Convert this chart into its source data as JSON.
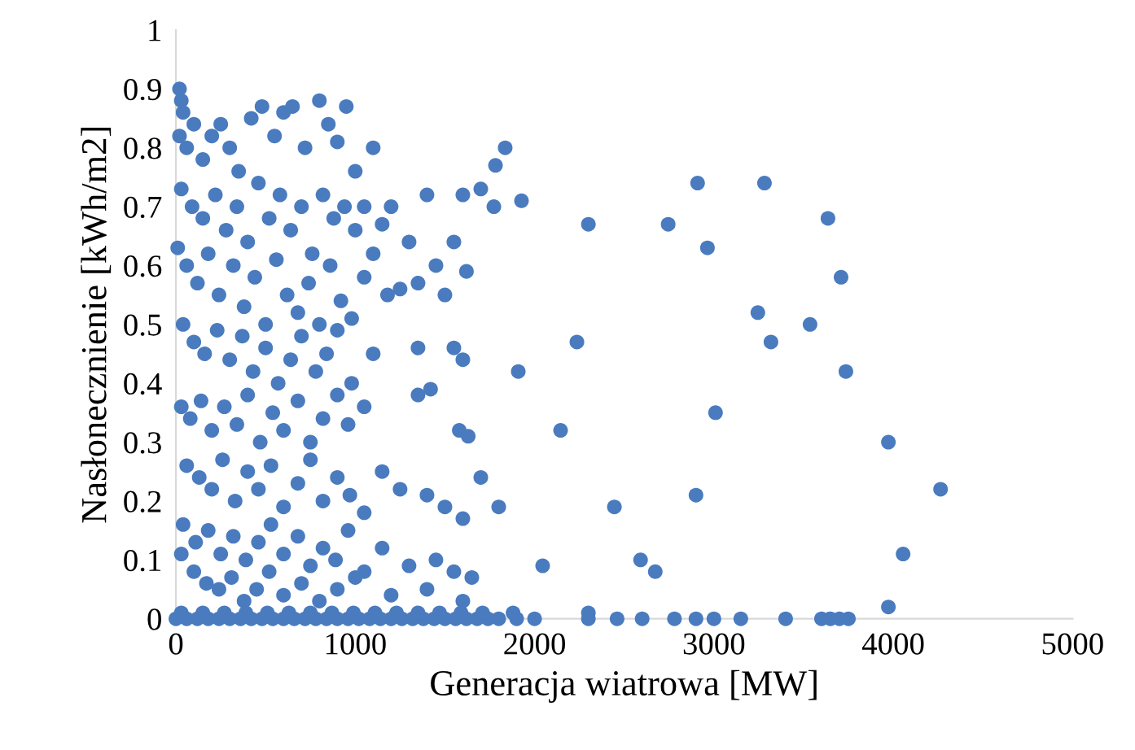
{
  "chart_data": {
    "type": "scatter",
    "xlabel": "Generacja wiatrowa [MW]",
    "ylabel": "Nasłonecznienie [kWh/m2]",
    "xlim": [
      0,
      5000
    ],
    "xticks": [
      0,
      1000,
      2000,
      3000,
      4000,
      5000
    ],
    "ylim": [
      0,
      1
    ],
    "yticks": [
      0,
      0.1,
      0.2,
      0.3,
      0.4,
      0.5,
      0.6,
      0.7,
      0.8,
      0.9,
      1
    ],
    "grid": false,
    "legend": false,
    "marker": "circle",
    "series": [
      {
        "color": "#4a7bbf",
        "x": [
          20,
          30,
          40,
          20,
          60,
          100,
          150,
          200,
          250,
          300,
          350,
          420,
          480,
          550,
          600,
          650,
          720,
          800,
          850,
          900,
          950,
          1000,
          1100,
          30,
          90,
          150,
          220,
          280,
          340,
          400,
          460,
          520,
          580,
          640,
          700,
          760,
          820,
          880,
          940,
          1000,
          1050,
          1150,
          1200,
          1300,
          1400,
          1550,
          1600,
          1700,
          1450,
          10,
          60,
          120,
          180,
          240,
          320,
          380,
          440,
          500,
          560,
          620,
          680,
          740,
          800,
          860,
          920,
          980,
          1050,
          1100,
          1180,
          1250,
          1350,
          1500,
          1620,
          40,
          100,
          160,
          230,
          300,
          370,
          430,
          500,
          570,
          640,
          700,
          780,
          840,
          900,
          980,
          1100,
          1350,
          1550,
          1600,
          1420,
          30,
          80,
          140,
          200,
          270,
          340,
          400,
          470,
          540,
          600,
          680,
          750,
          820,
          900,
          960,
          1050,
          1350,
          1580,
          1630,
          60,
          130,
          200,
          260,
          330,
          400,
          460,
          530,
          600,
          680,
          750,
          820,
          900,
          970,
          1050,
          1150,
          1250,
          1400,
          1500,
          1700,
          1600,
          1800,
          40,
          110,
          180,
          250,
          320,
          390,
          460,
          530,
          600,
          680,
          750,
          820,
          890,
          960,
          1050,
          1150,
          1300,
          1450,
          1550,
          1650,
          30,
          100,
          170,
          240,
          310,
          380,
          450,
          520,
          600,
          700,
          800,
          900,
          1000,
          1200,
          1400,
          1600,
          2300,
          2745,
          2909,
          3282,
          3636,
          2964,
          3709,
          3245,
          3318,
          3536,
          3736,
          3009,
          3973,
          4264,
          4055,
          2900,
          2445,
          2145,
          2236,
          1909,
          1927,
          1836,
          1782,
          1773,
          2045,
          2591,
          2673,
          3973,
          0,
          60,
          120,
          180,
          240,
          300,
          360,
          420,
          480,
          540,
          600,
          660,
          720,
          780,
          840,
          900,
          960,
          1020,
          1080,
          1140,
          1200,
          1260,
          1320,
          1380,
          1440,
          1500,
          1560,
          1620,
          1680,
          1740,
          1800,
          1900,
          2000,
          2300,
          2460,
          2600,
          2780,
          2900,
          3000,
          3150,
          3400,
          3600,
          3650,
          3700,
          3750,
          30,
          150,
          270,
          390,
          510,
          630,
          750,
          870,
          990,
          1110,
          1230,
          1350,
          1470,
          1590,
          1710,
          1880,
          2300
        ],
        "values": [
          0.9,
          0.88,
          0.86,
          0.82,
          0.8,
          0.84,
          0.78,
          0.82,
          0.84,
          0.8,
          0.76,
          0.85,
          0.87,
          0.82,
          0.86,
          0.87,
          0.8,
          0.88,
          0.84,
          0.81,
          0.87,
          0.76,
          0.8,
          0.73,
          0.7,
          0.68,
          0.72,
          0.66,
          0.7,
          0.64,
          0.74,
          0.68,
          0.72,
          0.66,
          0.7,
          0.62,
          0.72,
          0.68,
          0.7,
          0.66,
          0.7,
          0.67,
          0.7,
          0.64,
          0.72,
          0.64,
          0.72,
          0.73,
          0.6,
          0.63,
          0.6,
          0.57,
          0.62,
          0.55,
          0.6,
          0.53,
          0.58,
          0.5,
          0.61,
          0.55,
          0.52,
          0.57,
          0.5,
          0.6,
          0.54,
          0.51,
          0.58,
          0.62,
          0.55,
          0.56,
          0.57,
          0.55,
          0.59,
          0.5,
          0.47,
          0.45,
          0.49,
          0.44,
          0.48,
          0.42,
          0.46,
          0.4,
          0.44,
          0.48,
          0.42,
          0.45,
          0.49,
          0.4,
          0.45,
          0.46,
          0.46,
          0.44,
          0.39,
          0.36,
          0.34,
          0.37,
          0.32,
          0.36,
          0.33,
          0.38,
          0.3,
          0.35,
          0.32,
          0.37,
          0.3,
          0.34,
          0.38,
          0.33,
          0.36,
          0.38,
          0.32,
          0.31,
          0.26,
          0.24,
          0.22,
          0.27,
          0.2,
          0.25,
          0.22,
          0.26,
          0.19,
          0.23,
          0.27,
          0.2,
          0.24,
          0.21,
          0.18,
          0.25,
          0.22,
          0.21,
          0.19,
          0.24,
          0.17,
          0.19,
          0.16,
          0.13,
          0.15,
          0.11,
          0.14,
          0.1,
          0.13,
          0.16,
          0.11,
          0.14,
          0.09,
          0.12,
          0.1,
          0.15,
          0.08,
          0.12,
          0.09,
          0.1,
          0.08,
          0.07,
          0.11,
          0.08,
          0.06,
          0.05,
          0.07,
          0.03,
          0.05,
          0.08,
          0.04,
          0.06,
          0.03,
          0.05,
          0.07,
          0.04,
          0.05,
          0.03,
          0.67,
          0.67,
          0.74,
          0.74,
          0.68,
          0.63,
          0.58,
          0.52,
          0.47,
          0.5,
          0.42,
          0.35,
          0.3,
          0.22,
          0.11,
          0.21,
          0.19,
          0.32,
          0.47,
          0.42,
          0.71,
          0.8,
          0.77,
          0.7,
          0.09,
          0.1,
          0.08,
          0.02,
          0,
          0,
          0,
          0,
          0,
          0,
          0,
          0,
          0,
          0,
          0,
          0,
          0,
          0,
          0,
          0,
          0,
          0,
          0,
          0,
          0,
          0,
          0,
          0,
          0,
          0,
          0,
          0,
          0,
          0,
          0,
          0,
          0,
          0,
          0,
          0,
          0,
          0,
          0,
          0,
          0,
          0,
          0,
          0,
          0,
          0.01,
          0.01,
          0.01,
          0.01,
          0.01,
          0.01,
          0.01,
          0.01,
          0.01,
          0.01,
          0.01,
          0.01,
          0.01,
          0.01,
          0.01,
          0.01,
          0.01
        ]
      }
    ]
  }
}
